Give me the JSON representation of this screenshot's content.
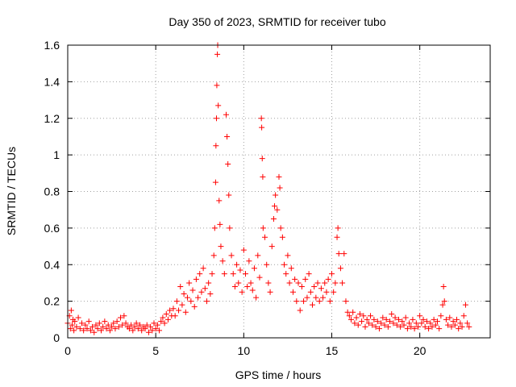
{
  "chart_data": {
    "type": "scatter",
    "title": "Day 350 of 2023, SRMTID for receiver tubo",
    "xlabel": "GPS time / hours",
    "ylabel": "SRMTID / TECUs",
    "xlim": [
      0,
      24
    ],
    "ylim": [
      0,
      1.6
    ],
    "x_ticks": [
      0,
      5,
      10,
      15,
      20
    ],
    "x_tick_labels": [
      "0",
      "5",
      "10",
      "15",
      "20"
    ],
    "y_ticks": [
      0,
      0.2,
      0.4,
      0.6,
      0.8,
      1.0,
      1.2,
      1.4,
      1.6
    ],
    "y_tick_labels": [
      "0",
      "0.2",
      "0.4",
      "0.6",
      "0.8",
      "1",
      "1.2",
      "1.4",
      "1.6"
    ],
    "grid": true,
    "marker": "plus",
    "series": [
      {
        "name": "SRMTID",
        "color": "#ff0000",
        "points": [
          [
            0.0,
            0.08
          ],
          [
            0.1,
            0.12
          ],
          [
            0.15,
            0.05
          ],
          [
            0.2,
            0.15
          ],
          [
            0.25,
            0.07
          ],
          [
            0.3,
            0.1
          ],
          [
            0.35,
            0.04
          ],
          [
            0.4,
            0.09
          ],
          [
            0.5,
            0.06
          ],
          [
            0.6,
            0.11
          ],
          [
            0.7,
            0.05
          ],
          [
            0.8,
            0.08
          ],
          [
            0.9,
            0.04
          ],
          [
            1.0,
            0.07
          ],
          [
            1.1,
            0.05
          ],
          [
            1.2,
            0.09
          ],
          [
            1.3,
            0.04
          ],
          [
            1.4,
            0.06
          ],
          [
            1.5,
            0.03
          ],
          [
            1.6,
            0.07
          ],
          [
            1.7,
            0.05
          ],
          [
            1.8,
            0.08
          ],
          [
            1.9,
            0.04
          ],
          [
            2.0,
            0.06
          ],
          [
            2.1,
            0.09
          ],
          [
            2.2,
            0.05
          ],
          [
            2.3,
            0.07
          ],
          [
            2.4,
            0.04
          ],
          [
            2.5,
            0.06
          ],
          [
            2.6,
            0.08
          ],
          [
            2.7,
            0.05
          ],
          [
            2.8,
            0.09
          ],
          [
            2.9,
            0.06
          ],
          [
            3.0,
            0.11
          ],
          [
            3.1,
            0.07
          ],
          [
            3.2,
            0.12
          ],
          [
            3.3,
            0.08
          ],
          [
            3.4,
            0.06
          ],
          [
            3.5,
            0.05
          ],
          [
            3.6,
            0.07
          ],
          [
            3.7,
            0.04
          ],
          [
            3.8,
            0.06
          ],
          [
            3.9,
            0.08
          ],
          [
            4.0,
            0.05
          ],
          [
            4.1,
            0.07
          ],
          [
            4.2,
            0.04
          ],
          [
            4.3,
            0.06
          ],
          [
            4.4,
            0.05
          ],
          [
            4.5,
            0.07
          ],
          [
            4.6,
            0.03
          ],
          [
            4.7,
            0.06
          ],
          [
            4.8,
            0.04
          ],
          [
            4.9,
            0.08
          ],
          [
            5.0,
            0.05
          ],
          [
            5.1,
            0.07
          ],
          [
            5.2,
            0.04
          ],
          [
            5.3,
            0.09
          ],
          [
            5.4,
            0.11
          ],
          [
            5.5,
            0.08
          ],
          [
            5.6,
            0.13
          ],
          [
            5.7,
            0.1
          ],
          [
            5.8,
            0.15
          ],
          [
            5.9,
            0.12
          ],
          [
            6.0,
            0.16
          ],
          [
            6.1,
            0.12
          ],
          [
            6.2,
            0.2
          ],
          [
            6.3,
            0.15
          ],
          [
            6.4,
            0.28
          ],
          [
            6.5,
            0.18
          ],
          [
            6.6,
            0.24
          ],
          [
            6.7,
            0.14
          ],
          [
            6.8,
            0.22
          ],
          [
            6.9,
            0.3
          ],
          [
            7.0,
            0.2
          ],
          [
            7.1,
            0.26
          ],
          [
            7.2,
            0.17
          ],
          [
            7.3,
            0.32
          ],
          [
            7.4,
            0.22
          ],
          [
            7.5,
            0.35
          ],
          [
            7.6,
            0.25
          ],
          [
            7.7,
            0.38
          ],
          [
            7.8,
            0.27
          ],
          [
            7.9,
            0.2
          ],
          [
            8.0,
            0.3
          ],
          [
            8.1,
            0.24
          ],
          [
            8.2,
            0.35
          ],
          [
            8.3,
            0.45
          ],
          [
            8.35,
            0.6
          ],
          [
            8.4,
            0.85
          ],
          [
            8.42,
            1.05
          ],
          [
            8.45,
            1.2
          ],
          [
            8.47,
            1.38
          ],
          [
            8.5,
            1.55
          ],
          [
            8.52,
            1.6
          ],
          [
            8.55,
            1.27
          ],
          [
            8.6,
            0.75
          ],
          [
            8.65,
            0.62
          ],
          [
            8.7,
            0.5
          ],
          [
            8.8,
            0.42
          ],
          [
            8.9,
            0.35
          ],
          [
            9.0,
            1.22
          ],
          [
            9.05,
            1.1
          ],
          [
            9.1,
            0.95
          ],
          [
            9.15,
            0.78
          ],
          [
            9.2,
            0.6
          ],
          [
            9.3,
            0.45
          ],
          [
            9.4,
            0.35
          ],
          [
            9.5,
            0.28
          ],
          [
            9.6,
            0.4
          ],
          [
            9.7,
            0.3
          ],
          [
            9.8,
            0.37
          ],
          [
            9.9,
            0.25
          ],
          [
            10.0,
            0.48
          ],
          [
            10.1,
            0.35
          ],
          [
            10.2,
            0.28
          ],
          [
            10.3,
            0.42
          ],
          [
            10.4,
            0.3
          ],
          [
            10.5,
            0.26
          ],
          [
            10.6,
            0.38
          ],
          [
            10.7,
            0.22
          ],
          [
            10.8,
            0.45
          ],
          [
            10.9,
            0.33
          ],
          [
            11.0,
            1.2
          ],
          [
            11.02,
            1.15
          ],
          [
            11.05,
            0.98
          ],
          [
            11.08,
            0.88
          ],
          [
            11.1,
            0.6
          ],
          [
            11.2,
            0.55
          ],
          [
            11.3,
            0.4
          ],
          [
            11.4,
            0.3
          ],
          [
            11.5,
            0.25
          ],
          [
            11.6,
            0.5
          ],
          [
            11.7,
            0.65
          ],
          [
            11.75,
            0.72
          ],
          [
            11.8,
            0.78
          ],
          [
            11.9,
            0.7
          ],
          [
            12.0,
            0.88
          ],
          [
            12.05,
            0.82
          ],
          [
            12.1,
            0.6
          ],
          [
            12.2,
            0.55
          ],
          [
            12.3,
            0.4
          ],
          [
            12.4,
            0.35
          ],
          [
            12.5,
            0.45
          ],
          [
            12.6,
            0.3
          ],
          [
            12.7,
            0.38
          ],
          [
            12.8,
            0.25
          ],
          [
            12.9,
            0.32
          ],
          [
            13.0,
            0.2
          ],
          [
            13.1,
            0.3
          ],
          [
            13.2,
            0.15
          ],
          [
            13.3,
            0.28
          ],
          [
            13.4,
            0.2
          ],
          [
            13.5,
            0.32
          ],
          [
            13.6,
            0.22
          ],
          [
            13.7,
            0.35
          ],
          [
            13.8,
            0.25
          ],
          [
            13.9,
            0.18
          ],
          [
            14.0,
            0.28
          ],
          [
            14.1,
            0.22
          ],
          [
            14.2,
            0.3
          ],
          [
            14.3,
            0.2
          ],
          [
            14.4,
            0.27
          ],
          [
            14.5,
            0.22
          ],
          [
            14.6,
            0.3
          ],
          [
            14.7,
            0.25
          ],
          [
            14.8,
            0.32
          ],
          [
            14.9,
            0.2
          ],
          [
            15.0,
            0.35
          ],
          [
            15.1,
            0.25
          ],
          [
            15.2,
            0.3
          ],
          [
            15.3,
            0.55
          ],
          [
            15.35,
            0.6
          ],
          [
            15.4,
            0.46
          ],
          [
            15.5,
            0.38
          ],
          [
            15.6,
            0.3
          ],
          [
            15.7,
            0.46
          ],
          [
            15.8,
            0.2
          ],
          [
            15.9,
            0.14
          ],
          [
            16.0,
            0.12
          ],
          [
            16.1,
            0.1
          ],
          [
            16.2,
            0.14
          ],
          [
            16.3,
            0.08
          ],
          [
            16.4,
            0.11
          ],
          [
            16.5,
            0.07
          ],
          [
            16.6,
            0.13
          ],
          [
            16.7,
            0.09
          ],
          [
            16.8,
            0.12
          ],
          [
            16.9,
            0.06
          ],
          [
            17.0,
            0.1
          ],
          [
            17.1,
            0.08
          ],
          [
            17.2,
            0.12
          ],
          [
            17.3,
            0.07
          ],
          [
            17.4,
            0.1
          ],
          [
            17.5,
            0.06
          ],
          [
            17.6,
            0.09
          ],
          [
            17.7,
            0.05
          ],
          [
            17.8,
            0.08
          ],
          [
            17.9,
            0.11
          ],
          [
            18.0,
            0.07
          ],
          [
            18.1,
            0.1
          ],
          [
            18.2,
            0.06
          ],
          [
            18.3,
            0.09
          ],
          [
            18.4,
            0.13
          ],
          [
            18.5,
            0.08
          ],
          [
            18.6,
            0.11
          ],
          [
            18.7,
            0.07
          ],
          [
            18.8,
            0.1
          ],
          [
            18.9,
            0.06
          ],
          [
            19.0,
            0.09
          ],
          [
            19.1,
            0.07
          ],
          [
            19.2,
            0.11
          ],
          [
            19.3,
            0.05
          ],
          [
            19.4,
            0.08
          ],
          [
            19.5,
            0.06
          ],
          [
            19.6,
            0.1
          ],
          [
            19.7,
            0.05
          ],
          [
            19.8,
            0.08
          ],
          [
            19.9,
            0.06
          ],
          [
            20.0,
            0.12
          ],
          [
            20.1,
            0.08
          ],
          [
            20.2,
            0.1
          ],
          [
            20.3,
            0.06
          ],
          [
            20.4,
            0.09
          ],
          [
            20.5,
            0.05
          ],
          [
            20.6,
            0.08
          ],
          [
            20.7,
            0.06
          ],
          [
            20.8,
            0.1
          ],
          [
            20.9,
            0.07
          ],
          [
            21.0,
            0.09
          ],
          [
            21.1,
            0.05
          ],
          [
            21.2,
            0.12
          ],
          [
            21.3,
            0.18
          ],
          [
            21.35,
            0.28
          ],
          [
            21.4,
            0.2
          ],
          [
            21.5,
            0.1
          ],
          [
            21.6,
            0.07
          ],
          [
            21.7,
            0.11
          ],
          [
            21.8,
            0.06
          ],
          [
            21.9,
            0.09
          ],
          [
            22.0,
            0.07
          ],
          [
            22.1,
            0.1
          ],
          [
            22.2,
            0.05
          ],
          [
            22.3,
            0.08
          ],
          [
            22.4,
            0.06
          ],
          [
            22.5,
            0.12
          ],
          [
            22.6,
            0.18
          ],
          [
            22.7,
            0.08
          ],
          [
            22.8,
            0.06
          ]
        ]
      }
    ]
  }
}
